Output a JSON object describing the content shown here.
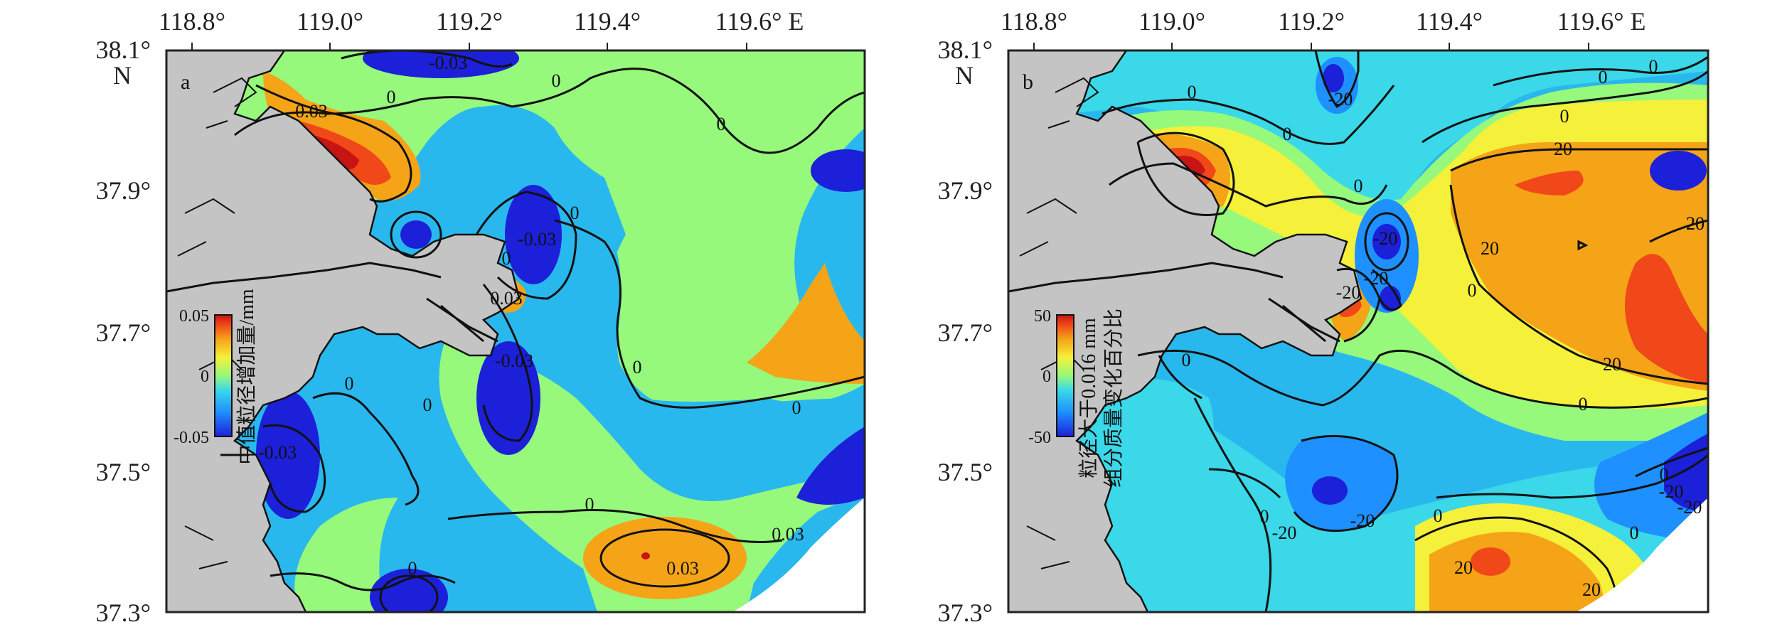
{
  "chart_data": [
    {
      "type": "heatmap",
      "panel_label": "a",
      "x_ticks": [
        "118.8°",
        "119.0°",
        "119.2°",
        "119.4°",
        "119.6° E"
      ],
      "y_ticks": [
        "38.1°",
        "37.9°",
        "37.7°",
        "37.5°",
        "37.3°"
      ],
      "y_unit": "N",
      "xlim": [
        118.8,
        119.8
      ],
      "ylim": [
        37.3,
        38.1
      ],
      "colorbar": {
        "min": -0.05,
        "max": 0.05,
        "ticks": [
          "0.05",
          "0",
          "-0.05"
        ],
        "label": "中值粒径增加量/mm"
      },
      "contour_labels": [
        "0",
        "-0.03",
        "0",
        "0",
        "0.03",
        "0",
        "0.03",
        "0",
        "0",
        "-0.03",
        "0",
        "0.03",
        "-0.03",
        "0",
        "0",
        "0",
        "0.03",
        "-0.03",
        "0"
      ]
    },
    {
      "type": "heatmap",
      "panel_label": "b",
      "x_ticks": [
        "118.8°",
        "119.0°",
        "119.2°",
        "119.4°",
        "119.6° E"
      ],
      "y_ticks": [
        "38.1°",
        "37.9°",
        "37.7°",
        "37.5°",
        "37.3°"
      ],
      "y_unit": "N",
      "xlim": [
        118.8,
        119.8
      ],
      "ylim": [
        37.3,
        38.1
      ],
      "colorbar": {
        "min": -50,
        "max": 50,
        "ticks": [
          "50",
          "0",
          "-50"
        ],
        "label_line1": "粒径大于0.016 mm",
        "label_line2": "组分质量变化百分比"
      },
      "contour_labels": [
        "0",
        "-20",
        "0",
        "0",
        "0",
        "20",
        "0",
        "0",
        "20",
        "20",
        "20",
        "-20",
        "-20",
        "-20",
        "0",
        "0",
        "0",
        "-20",
        "-20",
        "0",
        "20",
        "0",
        "20",
        "0",
        "20",
        "-20",
        "0",
        "-20"
      ]
    }
  ],
  "colors": {
    "land": "#c4c4c4",
    "deep_blue": "#1c20d8",
    "blue": "#1e90ff",
    "light_blue": "#29b8ee",
    "cyan": "#3ad8e8",
    "green": "#96f97b",
    "yellow": "#f5f03a",
    "orange": "#f5a418",
    "red_orange": "#f04818",
    "red": "#c81414"
  }
}
